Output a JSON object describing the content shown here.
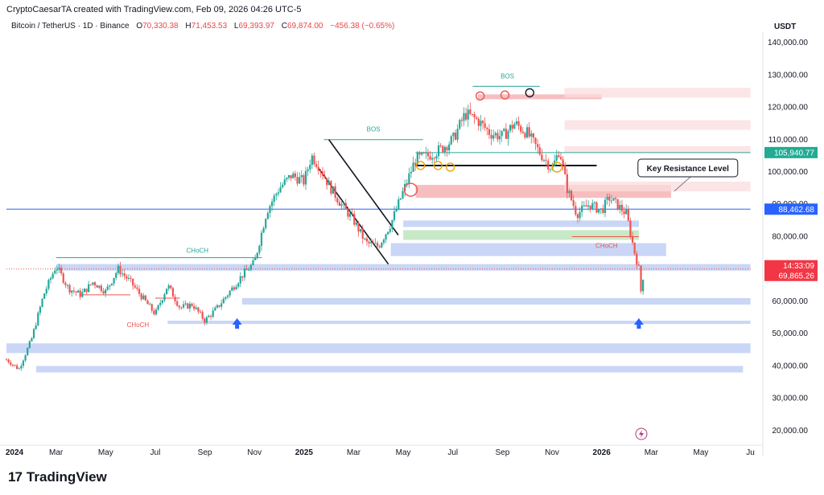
{
  "header": {
    "created_by": "CryptoCaesarTA created with TradingView.com, Feb 09, 2026 04:26 UTC-5",
    "symbol": "Bitcoin / TetherUS · 1D · Binance",
    "open_label": "O",
    "open": "70,330.38",
    "high_label": "H",
    "high": "71,453.53",
    "low_label": "L",
    "low": "69,393.97",
    "close_label": "C",
    "close": "69,874.00",
    "change": "−456.38 (−0.65%)"
  },
  "brand": {
    "logo": "17",
    "name": "TradingView"
  },
  "colors": {
    "up": "#26a69a",
    "down": "#ef5350",
    "blue_zone": "#b7c8f3",
    "red_zone": "#f6b3b5",
    "green_zone": "#b6e2b6",
    "accent_blue": "#2962ff",
    "price_green": "#22ab94",
    "price_red": "#f23645"
  },
  "chart_data": {
    "type": "candlestick",
    "unit": "USDT",
    "ylim": [
      17000,
      142000
    ],
    "y_ticks": [
      {
        "value": 140000,
        "label": "140,000.00"
      },
      {
        "value": 130000,
        "label": "130,000.00"
      },
      {
        "value": 120000,
        "label": "120,000.00"
      },
      {
        "value": 110000,
        "label": "110,000.00"
      },
      {
        "value": 100000,
        "label": "100,000.00"
      },
      {
        "value": 90000,
        "label": "90,000.00"
      },
      {
        "value": 80000,
        "label": "80,000.00"
      },
      {
        "value": 60000,
        "label": "60,000.00"
      },
      {
        "value": 50000,
        "label": "50,000.00"
      },
      {
        "value": 40000,
        "label": "40,000.00"
      },
      {
        "value": 30000,
        "label": "30,000.00"
      },
      {
        "value": 20000,
        "label": "20,000.00"
      }
    ],
    "x_ticks": [
      {
        "t": 0,
        "label": "2024",
        "bold": true
      },
      {
        "t": 2,
        "label": "Mar"
      },
      {
        "t": 4,
        "label": "May"
      },
      {
        "t": 6,
        "label": "Jul"
      },
      {
        "t": 8,
        "label": "Sep"
      },
      {
        "t": 10,
        "label": "Nov"
      },
      {
        "t": 12,
        "label": "2025",
        "bold": true
      },
      {
        "t": 14,
        "label": "Mar"
      },
      {
        "t": 16,
        "label": "May"
      },
      {
        "t": 18,
        "label": "Jul"
      },
      {
        "t": 20,
        "label": "Sep"
      },
      {
        "t": 22,
        "label": "Nov"
      },
      {
        "t": 24,
        "label": "2026",
        "bold": true
      },
      {
        "t": 26,
        "label": "Mar"
      },
      {
        "t": 28,
        "label": "May"
      },
      {
        "t": 30,
        "label": "Ju"
      }
    ],
    "price_path": [
      [
        0,
        42000
      ],
      [
        0.5,
        39000
      ],
      [
        1,
        48000
      ],
      [
        1.5,
        62000
      ],
      [
        2,
        71000
      ],
      [
        2.5,
        64000
      ],
      [
        3,
        62000
      ],
      [
        3.5,
        66000
      ],
      [
        4,
        63000
      ],
      [
        4.5,
        70000
      ],
      [
        5,
        66000
      ],
      [
        5.5,
        61000
      ],
      [
        6,
        56000
      ],
      [
        6.5,
        65000
      ],
      [
        7,
        58000
      ],
      [
        7.5,
        59000
      ],
      [
        8,
        54000
      ],
      [
        8.5,
        58000
      ],
      [
        9,
        63000
      ],
      [
        9.5,
        68000
      ],
      [
        10,
        72000
      ],
      [
        10.5,
        88000
      ],
      [
        11,
        95000
      ],
      [
        11.5,
        99000
      ],
      [
        12,
        97000
      ],
      [
        12.3,
        105000
      ],
      [
        12.6,
        102000
      ],
      [
        13,
        96000
      ],
      [
        13.5,
        90000
      ],
      [
        14,
        85000
      ],
      [
        14.5,
        78000
      ],
      [
        15,
        77000
      ],
      [
        15.5,
        84000
      ],
      [
        16,
        94000
      ],
      [
        16.5,
        104000
      ],
      [
        17,
        105000
      ],
      [
        17.5,
        107000
      ],
      [
        18,
        110000
      ],
      [
        18.5,
        118000
      ],
      [
        19,
        116000
      ],
      [
        19.5,
        112000
      ],
      [
        20,
        111000
      ],
      [
        20.5,
        115000
      ],
      [
        21,
        112000
      ],
      [
        21.5,
        106000
      ],
      [
        22,
        101000
      ],
      [
        22.3,
        107000
      ],
      [
        22.6,
        95000
      ],
      [
        23,
        87000
      ],
      [
        23.5,
        90000
      ],
      [
        24,
        88000
      ],
      [
        24.3,
        92000
      ],
      [
        24.6,
        90000
      ],
      [
        25,
        87000
      ],
      [
        25.3,
        76000
      ],
      [
        25.5,
        70000
      ],
      [
        25.6,
        62000
      ],
      [
        25.7,
        70000
      ]
    ],
    "zones": [
      {
        "type": "blue",
        "t0": 2,
        "t1": 30,
        "p_hi": 71500,
        "p_lo": 69500
      },
      {
        "type": "blue",
        "t0": 9.5,
        "t1": 30,
        "p_hi": 61000,
        "p_lo": 59000
      },
      {
        "type": "blue",
        "t0": 6.5,
        "t1": 30,
        "p_hi": 54000,
        "p_lo": 53000
      },
      {
        "type": "blue",
        "t0": 0,
        "t1": 30,
        "p_hi": 47000,
        "p_lo": 44000
      },
      {
        "type": "blue",
        "t0": 1.2,
        "t1": 29.7,
        "p_hi": 40000,
        "p_lo": 38000
      },
      {
        "type": "blue",
        "t0": 15.5,
        "t1": 26.6,
        "p_hi": 78000,
        "p_lo": 74000
      },
      {
        "type": "blue",
        "t0": 16,
        "t1": 25.5,
        "p_hi": 85000,
        "p_lo": 83000
      },
      {
        "type": "green",
        "t0": 16,
        "t1": 25.5,
        "p_hi": 82000,
        "p_lo": 79000
      },
      {
        "type": "red",
        "t0": 16.5,
        "t1": 26.8,
        "p_hi": 96000,
        "p_lo": 92000
      },
      {
        "type": "red",
        "t0": 19,
        "t1": 24,
        "p_hi": 124000,
        "p_lo": 122500
      },
      {
        "type": "red_light",
        "t0": 22.5,
        "t1": 30,
        "p_hi": 126000,
        "p_lo": 123000
      },
      {
        "type": "red_light",
        "t0": 22.5,
        "t1": 30,
        "p_hi": 116000,
        "p_lo": 113000
      },
      {
        "type": "red_light",
        "t0": 22.5,
        "t1": 30,
        "p_hi": 97000,
        "p_lo": 94000
      },
      {
        "type": "red_light",
        "t0": 22.5,
        "t1": 30,
        "p_hi": 108000,
        "p_lo": 106000
      }
    ],
    "lines": [
      {
        "t0": 2,
        "p0": 73500,
        "t1": 10.3,
        "p1": 73500,
        "color": "#26a69a"
      },
      {
        "t0": 12.8,
        "p0": 110000,
        "t1": 16.8,
        "p1": 110000,
        "color": "#26a69a"
      },
      {
        "t0": 16.5,
        "p0": 106000,
        "t1": 30,
        "p1": 106000,
        "color": "#26a69a"
      },
      {
        "t0": 18.8,
        "p0": 126500,
        "t1": 21.5,
        "p1": 126500,
        "color": "#26a69a"
      },
      {
        "t0": 16.5,
        "p0": 102000,
        "t1": 23.8,
        "p1": 102000,
        "color": "#131722",
        "width": 2
      },
      {
        "t0": 0,
        "p0": 88500,
        "t1": 30,
        "p1": 88500,
        "color": "#2962ff"
      },
      {
        "t0": 13,
        "p0": 110000,
        "t1": 15.8,
        "p1": 80500,
        "color": "#131722",
        "width": 1.6
      },
      {
        "t0": 12.6,
        "p0": 101000,
        "t1": 15.4,
        "p1": 71500,
        "color": "#131722",
        "width": 1.6
      },
      {
        "t0": 0,
        "p0": 70000,
        "t1": 30,
        "p1": 70000,
        "color": "#ef5350",
        "dash": "1,2"
      },
      {
        "t0": 6,
        "p0": 61000,
        "t1": 7,
        "p1": 61000,
        "color": "#ef5350"
      },
      {
        "t0": 3,
        "p0": 62000,
        "t1": 5,
        "p1": 62000,
        "color": "#ef5350"
      },
      {
        "t0": 22.8,
        "p0": 80000,
        "t1": 25.5,
        "p1": 80000,
        "color": "#ef5350"
      }
    ],
    "circles": [
      {
        "t": 19.1,
        "p": 123500,
        "color": "#ef5350",
        "r": 5
      },
      {
        "t": 20.1,
        "p": 123800,
        "color": "#ef5350",
        "r": 5
      },
      {
        "t": 21.1,
        "p": 124500,
        "color": "#131722",
        "r": 5
      },
      {
        "t": 16.7,
        "p": 102000,
        "color": "#f0a500",
        "r": 5
      },
      {
        "t": 17.4,
        "p": 102000,
        "color": "#f0a500",
        "r": 5
      },
      {
        "t": 17.9,
        "p": 101500,
        "color": "#f0a500",
        "r": 5
      },
      {
        "t": 22.2,
        "p": 101500,
        "color": "#f0a500",
        "r": 6
      },
      {
        "t": 16.3,
        "p": 94500,
        "color": "#ef5350",
        "r": 8
      }
    ],
    "arrows": [
      {
        "t": 9.3,
        "p": 58000
      },
      {
        "t": 25.5,
        "p": 58000
      }
    ],
    "annotations": [
      {
        "text": "CHoCH",
        "t": 7.7,
        "p": 75000,
        "color": "#26a69a"
      },
      {
        "text": "CHoCH",
        "t": 5.3,
        "p": 52000,
        "color": "#ef5350"
      },
      {
        "text": "BOS",
        "t": 14.8,
        "p": 112500,
        "color": "#26a69a"
      },
      {
        "text": "BOS",
        "t": 20.2,
        "p": 129000,
        "color": "#26a69a"
      },
      {
        "text": "CHoCH",
        "t": 24.2,
        "p": 76500,
        "color": "#ef5350"
      }
    ],
    "callout": {
      "text": "Key Resistance Level",
      "t": 26.6,
      "p": 101500
    },
    "price_labels": [
      {
        "text": "105,940.77",
        "p": 106000,
        "bg": "#22ab94"
      },
      {
        "text": "88,462.68",
        "p": 88500,
        "bg": "#2962ff"
      },
      {
        "text": "14:33:09",
        "p": 71000,
        "bg": "#f23645"
      },
      {
        "text": "69,865.26",
        "p": 68000,
        "bg": "#f23645"
      }
    ]
  }
}
